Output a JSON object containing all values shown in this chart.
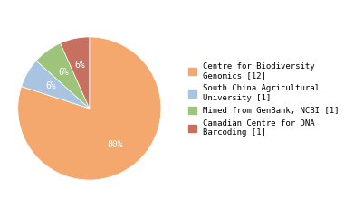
{
  "labels": [
    "Centre for Biodiversity\nGenomics [12]",
    "South China Agricultural\nUniversity [1]",
    "Mined from GenBank, NCBI [1]",
    "Canadian Centre for DNA\nBarcoding [1]"
  ],
  "values": [
    12,
    1,
    1,
    1
  ],
  "colors": [
    "#f5a86e",
    "#a8c4e0",
    "#9ec47a",
    "#c87060"
  ],
  "pct_labels": [
    "80%",
    "6%",
    "6%",
    "6%"
  ],
  "startangle": 90,
  "background_color": "#ffffff",
  "figsize": [
    3.8,
    2.4
  ],
  "dpi": 100
}
